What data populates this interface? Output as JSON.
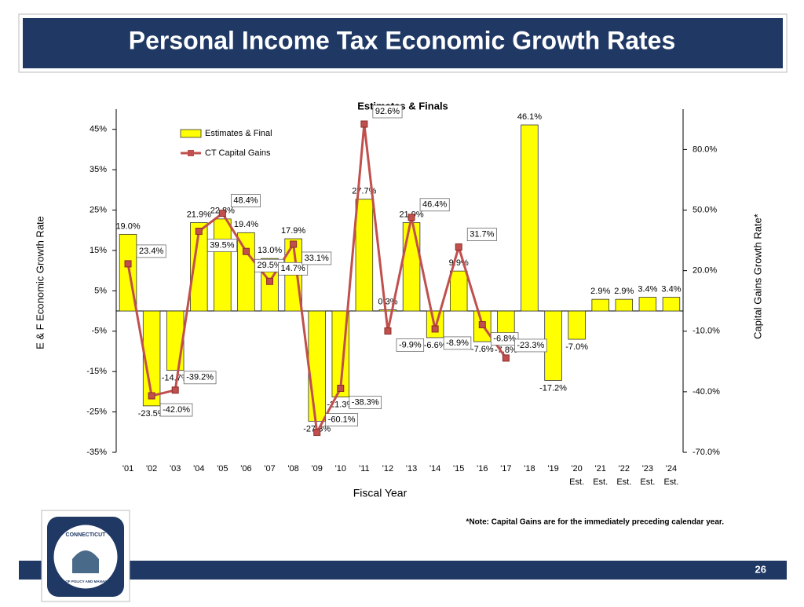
{
  "header": {
    "title": "Personal Income Tax Economic Growth Rates",
    "page_number": "26"
  },
  "logo": {
    "top": "CONNECTICUT",
    "bottom": "OFFICE OF POLICY AND MANAGEMENT"
  },
  "note": "*Note: Capital Gains are for the immediately preceding calendar year.",
  "chart_data": {
    "type": "bar_line",
    "title": "Estimates & Finals",
    "x_label": "Fiscal Year",
    "y_label": "E & F Economic Growth Rate",
    "y2_label": "Capital Gains Growth Rate*",
    "categories": [
      "'01",
      "'02",
      "'03",
      "'04",
      "'05",
      "'06",
      "'07",
      "'08",
      "'09",
      "'10",
      "'11",
      "'12",
      "'13",
      "'14",
      "'15",
      "'16",
      "'17",
      "'18",
      "'19",
      "'20",
      "'21",
      "'22",
      "'23",
      "'24"
    ],
    "category_notes": [
      null,
      null,
      null,
      null,
      null,
      null,
      null,
      null,
      null,
      null,
      null,
      null,
      null,
      null,
      null,
      null,
      null,
      null,
      null,
      "Est.",
      "Est.",
      "Est.",
      "Est.",
      "Est."
    ],
    "ylim": [
      -35,
      50
    ],
    "yticks": [
      {
        "value": 45,
        "label": "45%"
      },
      {
        "value": 35,
        "label": "35%"
      },
      {
        "value": 25,
        "label": "25%"
      },
      {
        "value": 15,
        "label": "15%"
      },
      {
        "value": 5,
        "label": "5%"
      },
      {
        "value": -5,
        "label": "-5%"
      },
      {
        "value": -15,
        "label": "-15%"
      },
      {
        "value": -25,
        "label": "-25%"
      },
      {
        "value": -35,
        "label": "-35%"
      }
    ],
    "y2lim": [
      -70,
      100
    ],
    "y2ticks": [
      {
        "value": 80,
        "label": "80.0%"
      },
      {
        "value": 50,
        "label": "50.0%"
      },
      {
        "value": 20,
        "label": "20.0%"
      },
      {
        "value": -10,
        "label": "-10.0%"
      },
      {
        "value": -40,
        "label": "-40.0%"
      },
      {
        "value": -70,
        "label": "-70.0%"
      }
    ],
    "legend": "upper left",
    "series": [
      {
        "name": "Estimates & Final",
        "type": "bar",
        "color": "#ffff00",
        "values": [
          19.0,
          -23.5,
          -14.7,
          21.9,
          22.8,
          19.4,
          13.0,
          17.9,
          -27.3,
          -21.3,
          27.7,
          0.3,
          21.9,
          -6.6,
          9.9,
          -7.6,
          -7.8,
          46.1,
          -17.2,
          -7.0,
          2.9,
          2.9,
          3.4,
          3.4
        ],
        "value_labels": [
          "19.0%",
          "-23.5%",
          "-14.7%",
          "21.9%",
          "22.8%",
          "19.4%",
          "13.0%",
          "17.9%",
          "-27.3%",
          "-21.3%",
          "27.7%",
          "0.3%",
          "21.9%",
          "-6.6%",
          "9.9%",
          "-7.6%",
          "-7.8%",
          "46.1%",
          "-17.2%",
          "-7.0%",
          "2.9%",
          "2.9%",
          "3.4%",
          "3.4%"
        ]
      },
      {
        "name": "CT Capital Gains",
        "type": "line",
        "axis": "y2",
        "color": "#c0504d",
        "values": [
          23.4,
          -42.0,
          -39.2,
          39.5,
          48.4,
          29.5,
          14.7,
          33.1,
          -60.1,
          -38.3,
          92.6,
          -9.9,
          46.4,
          -8.9,
          31.7,
          -6.8,
          -23.3,
          null,
          null,
          null,
          null,
          null,
          null,
          null
        ],
        "value_labels": [
          "23.4%",
          "-42.0%",
          "-39.2%",
          "39.5%",
          "48.4%",
          "29.5%",
          "14.7%",
          "33.1%",
          "-60.1%",
          "-38.3%",
          "92.6%",
          "-9.9%",
          "46.4%",
          "-8.9%",
          "31.7%",
          "-6.8%",
          "-23.3%",
          null,
          null,
          null,
          null,
          null,
          null,
          null
        ]
      }
    ]
  }
}
